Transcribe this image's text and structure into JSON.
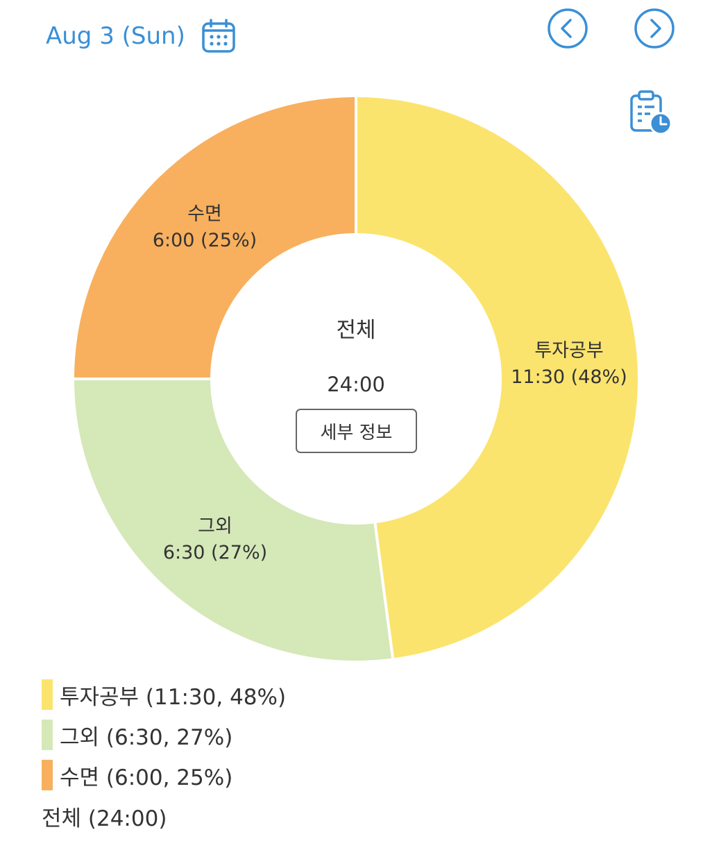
{
  "header": {
    "date": "Aug 3 (Sun)",
    "calendar_icon": "calendar-icon",
    "prev_icon": "chevron-left-circle-icon",
    "next_icon": "chevron-right-circle-icon",
    "report_icon": "clipboard-clock-icon",
    "accent_color": "#3a8fd6"
  },
  "center": {
    "title": "전체",
    "total": "24:00",
    "detail_button": "세부 정보"
  },
  "chart_data": {
    "type": "pie",
    "categories": [
      "투자공부",
      "그외",
      "수면"
    ],
    "values": [
      11.5,
      6.5,
      6.0
    ],
    "durations": [
      "11:30",
      "6:30",
      "6:00"
    ],
    "percents": [
      "48%",
      "27%",
      "25%"
    ],
    "colors": [
      "#fbe46e",
      "#d5e8b8",
      "#f8b05e"
    ],
    "slice_labels": [
      "11:30 (48%)",
      "6:30 (27%)",
      "6:00 (25%)"
    ],
    "title": "",
    "total_label": "전체",
    "total_value": "24:00"
  },
  "legend": {
    "items": [
      {
        "text": "투자공부 (11:30, 48%)",
        "color": "#fbe46e"
      },
      {
        "text": "그외 (6:30, 27%)",
        "color": "#d5e8b8"
      },
      {
        "text": "수면 (6:00, 25%)",
        "color": "#f8b05e"
      }
    ],
    "total_text": "전체 (24:00)"
  }
}
